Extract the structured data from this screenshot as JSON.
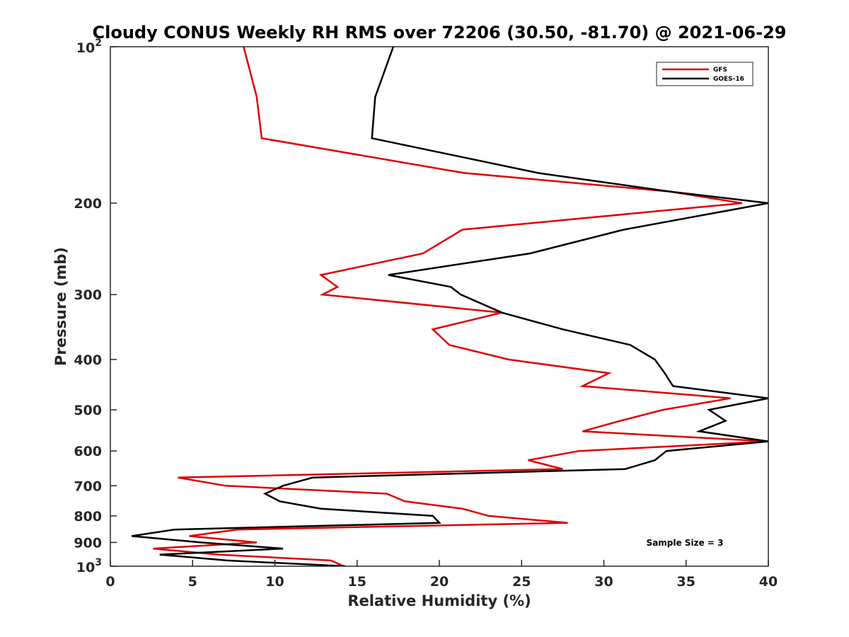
{
  "chart_data": {
    "type": "line",
    "title": "Cloudy CONUS Weekly RH RMS over 72206 (30.50, -81.70) @ 2021-06-29",
    "xlabel": "Relative Humidity (%)",
    "ylabel": "Pressure (mb)",
    "xlim": [
      0,
      40
    ],
    "ylim": [
      100,
      1000
    ],
    "yscale": "log",
    "y_reversed": true,
    "grid": false,
    "legend_position": "top-right",
    "x_ticks": [
      {
        "value": 0,
        "label": "0"
      },
      {
        "value": 5,
        "label": "5"
      },
      {
        "value": 10,
        "label": "10"
      },
      {
        "value": 15,
        "label": "15"
      },
      {
        "value": 20,
        "label": "20"
      },
      {
        "value": 25,
        "label": "25"
      },
      {
        "value": 30,
        "label": "30"
      },
      {
        "value": 35,
        "label": "35"
      },
      {
        "value": 40,
        "label": "40"
      }
    ],
    "y_ticks": [
      {
        "value": 200,
        "label": "200"
      },
      {
        "value": 300,
        "label": "300"
      },
      {
        "value": 400,
        "label": "400"
      },
      {
        "value": 500,
        "label": "500"
      },
      {
        "value": 600,
        "label": "600"
      },
      {
        "value": 700,
        "label": "700"
      },
      {
        "value": 800,
        "label": "800"
      },
      {
        "value": 900,
        "label": "900"
      }
    ],
    "y_ticks_pow": [
      {
        "value": 100,
        "base": "10",
        "exp": "2"
      },
      {
        "value": 1000,
        "base": "10",
        "exp": "3"
      }
    ],
    "annotation": "Sample Size = 3",
    "series": [
      {
        "name": "GFS",
        "color": "#e00000",
        "points": [
          {
            "p": 100,
            "rh": 8.1
          },
          {
            "p": 125,
            "rh": 8.9
          },
          {
            "p": 150,
            "rh": 9.2
          },
          {
            "p": 175,
            "rh": 21.5
          },
          {
            "p": 190,
            "rh": 34.0
          },
          {
            "p": 200,
            "rh": 38.4
          },
          {
            "p": 225,
            "rh": 21.4
          },
          {
            "p": 250,
            "rh": 19.0
          },
          {
            "p": 275,
            "rh": 12.8
          },
          {
            "p": 290,
            "rh": 13.8
          },
          {
            "p": 300,
            "rh": 12.9
          },
          {
            "p": 325,
            "rh": 23.8
          },
          {
            "p": 350,
            "rh": 19.6
          },
          {
            "p": 375,
            "rh": 20.6
          },
          {
            "p": 400,
            "rh": 24.2
          },
          {
            "p": 425,
            "rh": 30.3
          },
          {
            "p": 450,
            "rh": 28.7
          },
          {
            "p": 475,
            "rh": 37.7
          },
          {
            "p": 500,
            "rh": 33.6
          },
          {
            "p": 525,
            "rh": 31.0
          },
          {
            "p": 550,
            "rh": 28.7
          },
          {
            "p": 575,
            "rh": 40.0
          },
          {
            "p": 600,
            "rh": 28.5
          },
          {
            "p": 625,
            "rh": 25.4
          },
          {
            "p": 650,
            "rh": 27.5
          },
          {
            "p": 675,
            "rh": 4.1
          },
          {
            "p": 700,
            "rh": 7.0
          },
          {
            "p": 725,
            "rh": 16.8
          },
          {
            "p": 750,
            "rh": 17.9
          },
          {
            "p": 775,
            "rh": 21.4
          },
          {
            "p": 800,
            "rh": 23.0
          },
          {
            "p": 825,
            "rh": 27.8
          },
          {
            "p": 850,
            "rh": 7.7
          },
          {
            "p": 875,
            "rh": 4.8
          },
          {
            "p": 900,
            "rh": 8.9
          },
          {
            "p": 925,
            "rh": 2.6
          },
          {
            "p": 950,
            "rh": 6.6
          },
          {
            "p": 975,
            "rh": 13.4
          },
          {
            "p": 1000,
            "rh": 14.2
          }
        ]
      },
      {
        "name": "GOES-16",
        "color": "#000000",
        "points": [
          {
            "p": 100,
            "rh": 17.2
          },
          {
            "p": 125,
            "rh": 16.1
          },
          {
            "p": 150,
            "rh": 15.9
          },
          {
            "p": 175,
            "rh": 26.0
          },
          {
            "p": 190,
            "rh": 34.0
          },
          {
            "p": 200,
            "rh": 40.0
          },
          {
            "p": 225,
            "rh": 31.2
          },
          {
            "p": 250,
            "rh": 25.5
          },
          {
            "p": 275,
            "rh": 16.9
          },
          {
            "p": 290,
            "rh": 20.7
          },
          {
            "p": 300,
            "rh": 21.3
          },
          {
            "p": 325,
            "rh": 23.8
          },
          {
            "p": 350,
            "rh": 27.5
          },
          {
            "p": 375,
            "rh": 31.6
          },
          {
            "p": 400,
            "rh": 33.1
          },
          {
            "p": 425,
            "rh": 33.7
          },
          {
            "p": 450,
            "rh": 34.2
          },
          {
            "p": 475,
            "rh": 40.0
          },
          {
            "p": 500,
            "rh": 36.4
          },
          {
            "p": 525,
            "rh": 37.4
          },
          {
            "p": 550,
            "rh": 35.8
          },
          {
            "p": 575,
            "rh": 40.0
          },
          {
            "p": 600,
            "rh": 33.8
          },
          {
            "p": 625,
            "rh": 33.1
          },
          {
            "p": 650,
            "rh": 31.3
          },
          {
            "p": 675,
            "rh": 12.3
          },
          {
            "p": 700,
            "rh": 10.5
          },
          {
            "p": 725,
            "rh": 9.4
          },
          {
            "p": 750,
            "rh": 10.3
          },
          {
            "p": 775,
            "rh": 12.8
          },
          {
            "p": 800,
            "rh": 19.6
          },
          {
            "p": 825,
            "rh": 20.0
          },
          {
            "p": 850,
            "rh": 3.9
          },
          {
            "p": 875,
            "rh": 1.3
          },
          {
            "p": 900,
            "rh": 5.5
          },
          {
            "p": 925,
            "rh": 10.5
          },
          {
            "p": 950,
            "rh": 3.0
          },
          {
            "p": 975,
            "rh": 7.1
          },
          {
            "p": 1000,
            "rh": 14.3
          }
        ]
      }
    ]
  }
}
